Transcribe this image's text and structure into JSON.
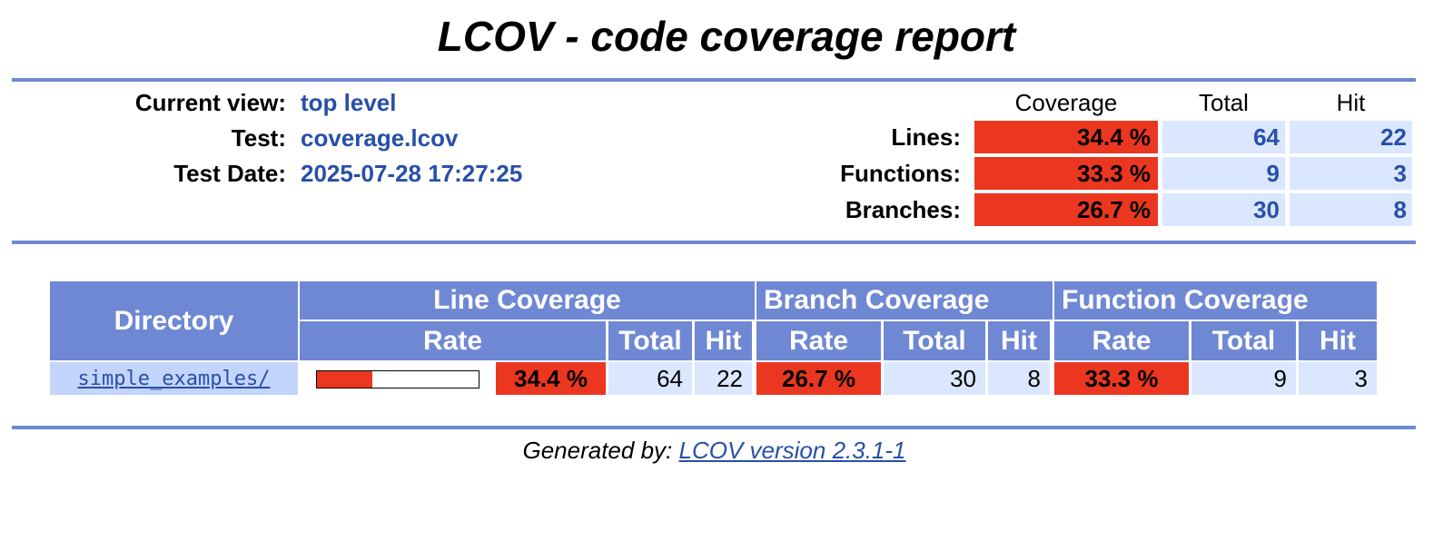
{
  "title": "LCOV - code coverage report",
  "header": {
    "info": [
      {
        "label": "Current view:",
        "value": "top level"
      },
      {
        "label": "Test:",
        "value": "coverage.lcov"
      },
      {
        "label": "Test Date:",
        "value": "2025-07-28 17:27:25"
      }
    ],
    "summary": {
      "columns": [
        "Coverage",
        "Total",
        "Hit"
      ],
      "rows": [
        {
          "label": "Lines:",
          "coverage": "34.4 %",
          "total": 64,
          "hit": 22
        },
        {
          "label": "Functions:",
          "coverage": "33.3 %",
          "total": 9,
          "hit": 3
        },
        {
          "label": "Branches:",
          "coverage": "26.7 %",
          "total": 30,
          "hit": 8
        }
      ]
    }
  },
  "directory_table": {
    "header": {
      "directory": "Directory",
      "groups": [
        "Line Coverage",
        "Branch Coverage",
        "Function Coverage"
      ],
      "sub": [
        "Rate",
        "Total",
        "Hit"
      ]
    },
    "rows": [
      {
        "name": "simple_examples/",
        "line": {
          "rate": 34.4,
          "rate_label": "34.4 %",
          "total": 64,
          "hit": 22
        },
        "branch": {
          "rate": 26.7,
          "rate_label": "26.7 %",
          "total": 30,
          "hit": 8
        },
        "function": {
          "rate": 33.3,
          "rate_label": "33.3 %",
          "total": 9,
          "hit": 3
        }
      }
    ]
  },
  "footer": {
    "label": "Generated by:",
    "link": "LCOV version 2.3.1-1"
  }
}
